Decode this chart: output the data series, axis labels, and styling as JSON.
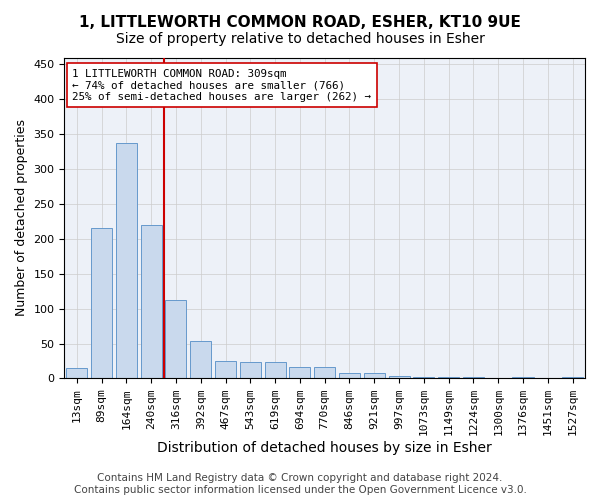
{
  "title1": "1, LITTLEWORTH COMMON ROAD, ESHER, KT10 9UE",
  "title2": "Size of property relative to detached houses in Esher",
  "xlabel": "Distribution of detached houses by size in Esher",
  "ylabel": "Number of detached properties",
  "categories": [
    "13sqm",
    "89sqm",
    "164sqm",
    "240sqm",
    "316sqm",
    "392sqm",
    "467sqm",
    "543sqm",
    "619sqm",
    "694sqm",
    "770sqm",
    "846sqm",
    "921sqm",
    "997sqm",
    "1073sqm",
    "1149sqm",
    "1224sqm",
    "1300sqm",
    "1376sqm",
    "1451sqm",
    "1527sqm"
  ],
  "values": [
    15,
    215,
    338,
    220,
    112,
    53,
    25,
    23,
    23,
    17,
    17,
    8,
    8,
    3,
    2,
    2,
    2,
    0,
    2,
    0,
    2
  ],
  "bar_color": "#c9d9ed",
  "bar_edge_color": "#6699cc",
  "vline_x": 3.5,
  "vline_color": "#cc0000",
  "annotation_text": "1 LITTLEWORTH COMMON ROAD: 309sqm\n← 74% of detached houses are smaller (766)\n25% of semi-detached houses are larger (262) →",
  "annotation_box_color": "#ffffff",
  "annotation_box_edge": "#cc0000",
  "ylim": [
    0,
    460
  ],
  "yticks": [
    0,
    50,
    100,
    150,
    200,
    250,
    300,
    350,
    400,
    450
  ],
  "grid_color": "#cccccc",
  "bg_color": "#edf1f8",
  "footer_line1": "Contains HM Land Registry data © Crown copyright and database right 2024.",
  "footer_line2": "Contains public sector information licensed under the Open Government Licence v3.0.",
  "title1_fontsize": 11,
  "title2_fontsize": 10,
  "xlabel_fontsize": 10,
  "ylabel_fontsize": 9,
  "tick_fontsize": 8,
  "footer_fontsize": 7.5
}
